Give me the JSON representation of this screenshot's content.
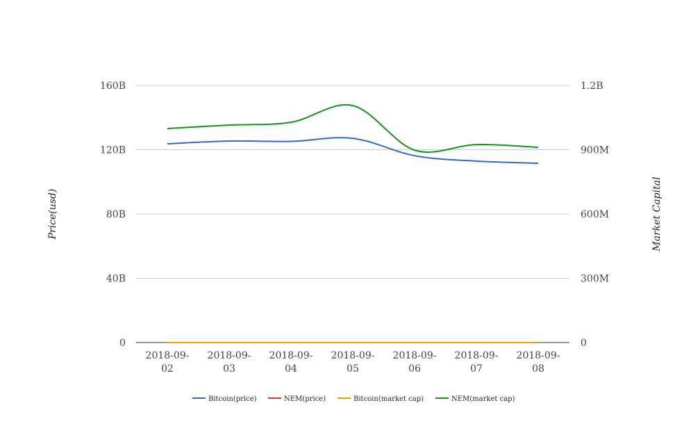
{
  "chart_data": {
    "type": "line",
    "categories": [
      "2018-09-02",
      "2018-09-03",
      "2018-09-04",
      "2018-09-05",
      "2018-09-06",
      "2018-09-07",
      "2018-09-08"
    ],
    "category_lines": [
      [
        "2018-09-",
        "02"
      ],
      [
        "2018-09-",
        "03"
      ],
      [
        "2018-09-",
        "04"
      ],
      [
        "2018-09-",
        "05"
      ],
      [
        "2018-09-",
        "06"
      ],
      [
        "2018-09-",
        "07"
      ],
      [
        "2018-09-",
        "08"
      ]
    ],
    "ylabel": "Price(usd)",
    "y2label": "Market Capital",
    "ylim": [
      0,
      160000000000
    ],
    "y2lim": [
      0,
      1200000000
    ],
    "yticks": [
      {
        "v": 0,
        "label": "0"
      },
      {
        "v": 40000000000,
        "label": "40B"
      },
      {
        "v": 80000000000,
        "label": "80B"
      },
      {
        "v": 120000000000,
        "label": "120B"
      },
      {
        "v": 160000000000,
        "label": "160B"
      }
    ],
    "y2ticks": [
      {
        "v": 0,
        "label": "0"
      },
      {
        "v": 300000000,
        "label": "300M"
      },
      {
        "v": 600000000,
        "label": "600M"
      },
      {
        "v": 900000000,
        "label": "900M"
      },
      {
        "v": 1200000000,
        "label": "1.2B"
      }
    ],
    "grid": true,
    "legend_position": "bottom",
    "series": [
      {
        "name": "Bitcoin(price)",
        "color": "#3366cc",
        "axis": "left",
        "values": [
          123700000000,
          125400000000,
          125200000000,
          127100000000,
          116300000000,
          112900000000,
          111600000000
        ]
      },
      {
        "name": "NEM(price)",
        "color": "#dc3912",
        "axis": "left",
        "values": [
          0.03,
          0.03,
          0.03,
          0.03,
          0.03,
          0.03,
          0.03
        ]
      },
      {
        "name": "Bitcoin(market cap)",
        "color": "#ff9900",
        "axis": "right",
        "values": [
          0,
          0,
          0,
          0,
          0,
          0,
          0
        ]
      },
      {
        "name": "NEM(market cap)",
        "color": "#109618",
        "axis": "right",
        "values": [
          999000000,
          1015000000,
          1028000000,
          1106000000,
          898000000,
          924000000,
          911000000
        ]
      }
    ]
  }
}
